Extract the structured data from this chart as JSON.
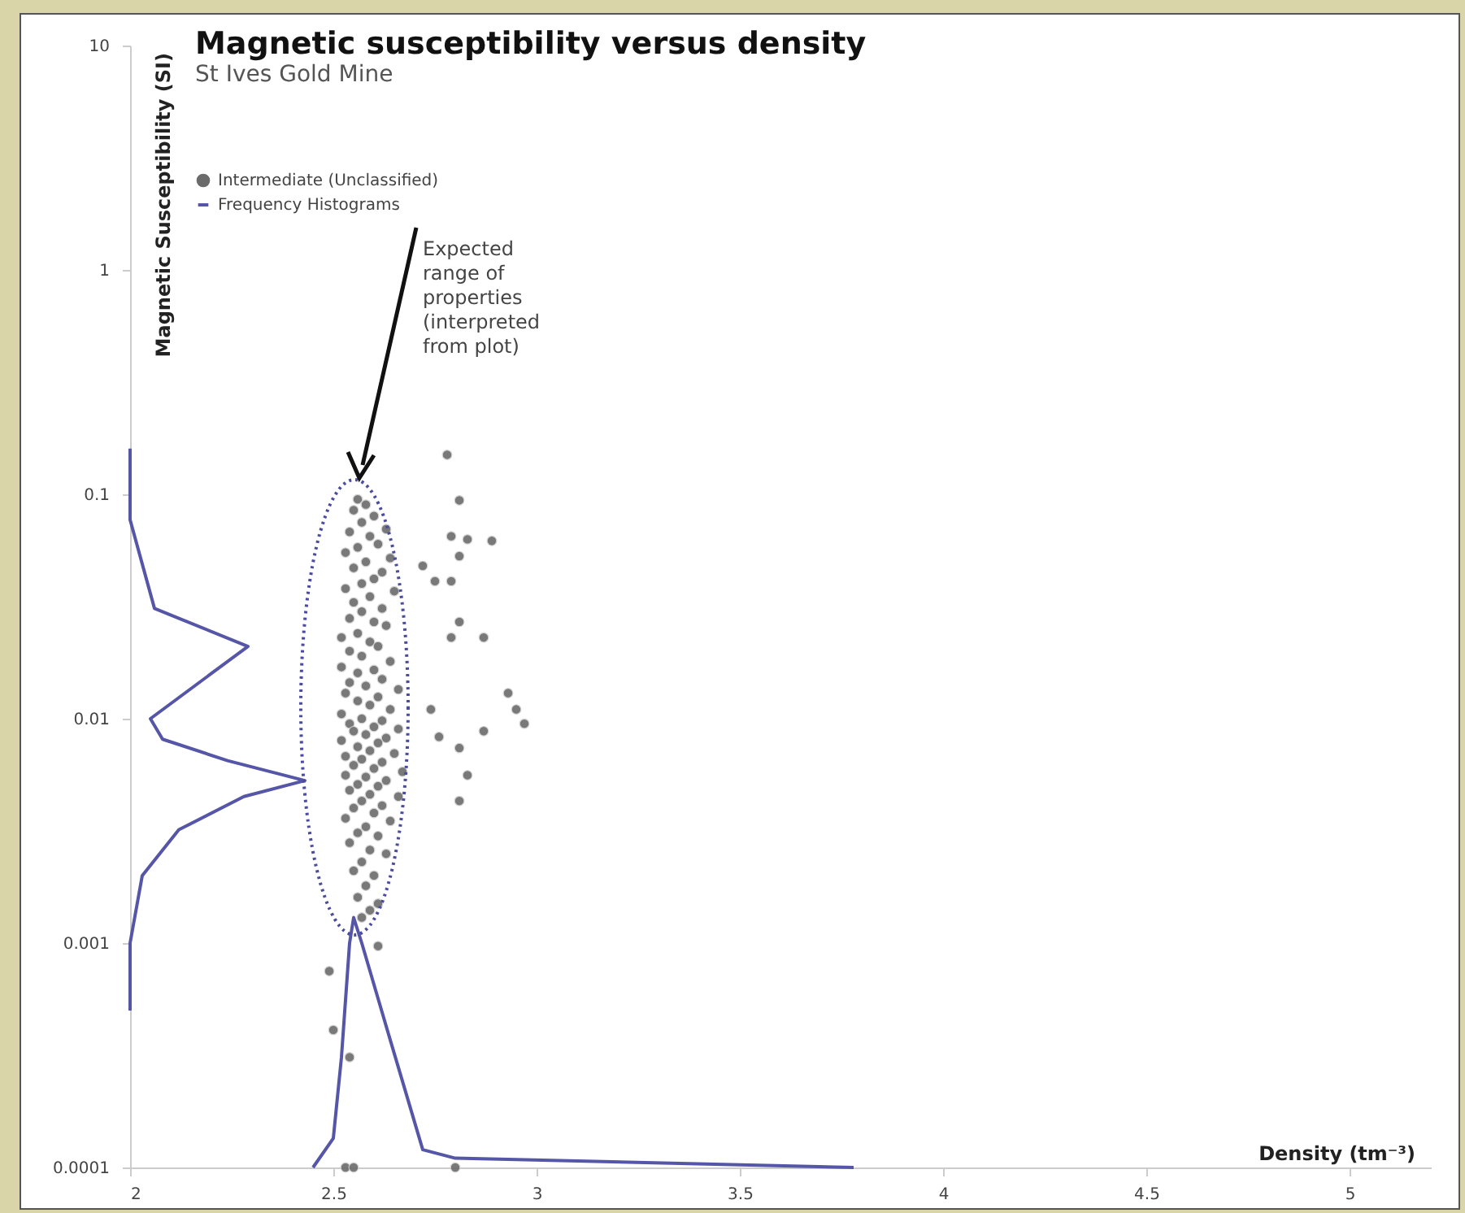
{
  "chart_data": {
    "type": "scatter",
    "title": "Magnetic susceptibility versus density",
    "subtitle": "St Ives Gold Mine",
    "xlabel": "Density (tm⁻³)",
    "ylabel": "Magnetic Susceptibility (SI)",
    "xlim": [
      2,
      5.2
    ],
    "ylim": [
      0.0001,
      10
    ],
    "xticks": [
      2,
      2.5,
      3,
      3.5,
      4,
      4.5,
      5
    ],
    "yticks": [
      0.0001,
      0.001,
      0.01,
      0.1,
      1,
      10
    ],
    "log": "y",
    "legend": "top left",
    "annotations": [
      "Expected range of properties (interpreted from plot)"
    ],
    "series": [
      {
        "name": "Intermediate (Unclassified)",
        "marker": "circle",
        "color": "#6b6b6b",
        "x": [
          2.56,
          2.58,
          2.55,
          2.6,
          2.57,
          2.63,
          2.54,
          2.59,
          2.61,
          2.56,
          2.53,
          2.64,
          2.58,
          2.55,
          2.62,
          2.6,
          2.57,
          2.53,
          2.65,
          2.59,
          2.55,
          2.62,
          2.57,
          2.54,
          2.6,
          2.63,
          2.56,
          2.52,
          2.59,
          2.61,
          2.54,
          2.57,
          2.64,
          2.52,
          2.6,
          2.56,
          2.62,
          2.54,
          2.58,
          2.66,
          2.53,
          2.61,
          2.56,
          2.59,
          2.64,
          2.52,
          2.57,
          2.62,
          2.54,
          2.6,
          2.66,
          2.55,
          2.58,
          2.63,
          2.52,
          2.61,
          2.56,
          2.59,
          2.65,
          2.53,
          2.57,
          2.62,
          2.55,
          2.6,
          2.67,
          2.53,
          2.58,
          2.63,
          2.56,
          2.61,
          2.54,
          2.59,
          2.66,
          2.57,
          2.62,
          2.55,
          2.6,
          2.53,
          2.64,
          2.58,
          2.56,
          2.61,
          2.54,
          2.59,
          2.63,
          2.57,
          2.55,
          2.6,
          2.58,
          2.56,
          2.61,
          2.59,
          2.57,
          2.78,
          2.81,
          2.79,
          2.83,
          2.89,
          2.81,
          2.72,
          2.75,
          2.79,
          2.81,
          2.79,
          2.87,
          2.93,
          2.95,
          2.97,
          2.74,
          2.87,
          2.81,
          2.76,
          2.83,
          2.81,
          2.49,
          2.5,
          2.54,
          2.53,
          2.55,
          2.8,
          2.61
        ],
        "values": [
          0.095,
          0.09,
          0.085,
          0.08,
          0.075,
          0.07,
          0.068,
          0.065,
          0.06,
          0.058,
          0.055,
          0.052,
          0.05,
          0.047,
          0.045,
          0.042,
          0.04,
          0.038,
          0.037,
          0.035,
          0.033,
          0.031,
          0.03,
          0.028,
          0.027,
          0.026,
          0.024,
          0.023,
          0.022,
          0.021,
          0.02,
          0.019,
          0.018,
          0.017,
          0.0165,
          0.016,
          0.015,
          0.0145,
          0.014,
          0.0135,
          0.013,
          0.0125,
          0.012,
          0.0115,
          0.011,
          0.0105,
          0.01,
          0.0098,
          0.0095,
          0.0092,
          0.009,
          0.0088,
          0.0085,
          0.0082,
          0.008,
          0.0078,
          0.0075,
          0.0072,
          0.007,
          0.0068,
          0.0066,
          0.0064,
          0.0062,
          0.006,
          0.0058,
          0.0056,
          0.0055,
          0.0053,
          0.0051,
          0.005,
          0.0048,
          0.0046,
          0.0045,
          0.0043,
          0.0041,
          0.004,
          0.0038,
          0.0036,
          0.0035,
          0.0033,
          0.0031,
          0.003,
          0.0028,
          0.0026,
          0.0025,
          0.0023,
          0.0021,
          0.002,
          0.0018,
          0.0016,
          0.0015,
          0.0014,
          0.0013,
          0.15,
          0.094,
          0.065,
          0.063,
          0.062,
          0.053,
          0.048,
          0.041,
          0.041,
          0.027,
          0.023,
          0.023,
          0.013,
          0.011,
          0.0095,
          0.011,
          0.0088,
          0.0074,
          0.0083,
          0.0056,
          0.0043,
          0.00075,
          0.00041,
          0.00031,
          0.0001,
          0.0001,
          0.0001,
          0.00097
        ]
      },
      {
        "name": "Frequency Histograms",
        "type": "line",
        "color": "#5656a8",
        "x": [
          2.0,
          2.0,
          2.06,
          2.29,
          2.05,
          2.08,
          2.24,
          2.43,
          2.28,
          2.12,
          2.03,
          2.0,
          2.0
        ],
        "values": [
          0.16,
          0.077,
          0.031,
          0.021,
          0.01,
          0.0081,
          0.0065,
          0.0053,
          0.0045,
          0.0032,
          0.002,
          0.001,
          0.0005
        ]
      },
      {
        "type": "line",
        "color": "#5656a8",
        "x": [
          2.45,
          2.5,
          2.52,
          2.54,
          2.55,
          2.57,
          2.64,
          2.72,
          2.8,
          3.78
        ],
        "values": [
          0.0001,
          0.000135,
          0.00031,
          0.001,
          0.0013,
          0.001,
          0.00037,
          0.00012,
          0.00011,
          0.0001
        ]
      }
    ]
  }
}
